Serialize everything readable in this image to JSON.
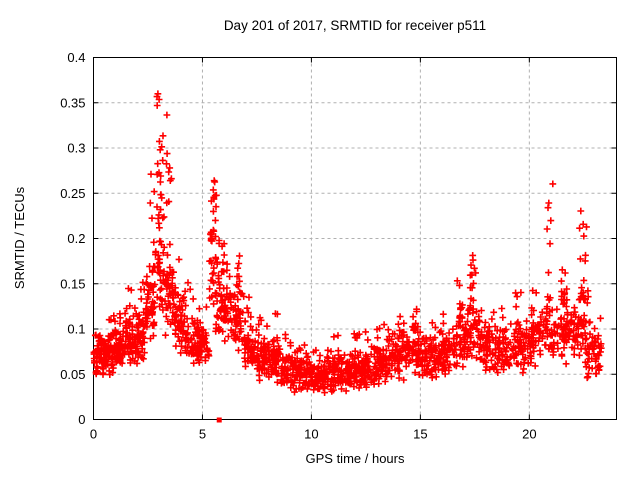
{
  "chart_data": {
    "type": "scatter",
    "title": "Day 201 of 2017, SRMTID for receiver p511",
    "xlabel": "GPS time / hours",
    "ylabel": "SRMTID / TECUs",
    "xlim": [
      0,
      24
    ],
    "ylim": [
      0,
      0.4
    ],
    "xticks": [
      {
        "v": 0,
        "label": "0"
      },
      {
        "v": 5,
        "label": "5"
      },
      {
        "v": 10,
        "label": "10"
      },
      {
        "v": 15,
        "label": "15"
      },
      {
        "v": 20,
        "label": "20"
      }
    ],
    "yticks": [
      {
        "v": 0.0,
        "label": "0"
      },
      {
        "v": 0.05,
        "label": "0.05"
      },
      {
        "v": 0.1,
        "label": "0.1"
      },
      {
        "v": 0.15,
        "label": "0.15"
      },
      {
        "v": 0.2,
        "label": "0.2"
      },
      {
        "v": 0.25,
        "label": "0.25"
      },
      {
        "v": 0.3,
        "label": "0.3"
      },
      {
        "v": 0.35,
        "label": "0.35"
      },
      {
        "v": 0.4,
        "label": "0.4"
      }
    ],
    "grid": true,
    "legend": "none",
    "marker": "plus-cross",
    "marker_color": "#ff0000",
    "grid_color": "#b0b0b0",
    "border_color": "#000000",
    "background_color": "#ffffff",
    "special_points": [
      {
        "x": 5.77,
        "y": 0,
        "marker": "filled-square",
        "color": "#ff0000"
      }
    ],
    "seed": 201,
    "envelope_format": "[hourStart, hourEnd, nPoints, bandLow, bandHigh, tailMax, tailFraction, tailHourCenterOrNull] — dense band of points between bandLow..bandHigh TECUs with sparse high tail up to tailMax",
    "envelope": [
      [
        0.0,
        0.5,
        55,
        0.048,
        0.095,
        0.115,
        0.08,
        null
      ],
      [
        0.5,
        1.0,
        55,
        0.045,
        0.1,
        0.125,
        0.1,
        null
      ],
      [
        1.0,
        1.5,
        55,
        0.052,
        0.105,
        0.135,
        0.1,
        null
      ],
      [
        1.5,
        2.0,
        55,
        0.055,
        0.115,
        0.155,
        0.12,
        null
      ],
      [
        2.0,
        2.4,
        45,
        0.06,
        0.13,
        0.23,
        0.18,
        2.25
      ],
      [
        2.4,
        2.8,
        50,
        0.08,
        0.17,
        0.3,
        0.25,
        2.65
      ],
      [
        2.8,
        3.3,
        60,
        0.1,
        0.23,
        0.37,
        0.3,
        3.05
      ],
      [
        3.3,
        3.7,
        50,
        0.09,
        0.19,
        0.365,
        0.22,
        3.45
      ],
      [
        3.7,
        4.2,
        50,
        0.07,
        0.145,
        0.2,
        0.12,
        3.8
      ],
      [
        4.2,
        4.8,
        55,
        0.058,
        0.115,
        0.16,
        0.08,
        null
      ],
      [
        4.8,
        5.3,
        50,
        0.058,
        0.11,
        0.14,
        0.08,
        null
      ],
      [
        5.3,
        5.8,
        58,
        0.09,
        0.205,
        0.28,
        0.3,
        5.5
      ],
      [
        5.8,
        6.3,
        55,
        0.08,
        0.165,
        0.21,
        0.15,
        6.0
      ],
      [
        6.3,
        6.9,
        55,
        0.068,
        0.145,
        0.19,
        0.12,
        6.7
      ],
      [
        6.9,
        7.5,
        55,
        0.055,
        0.115,
        0.145,
        0.08,
        null
      ],
      [
        7.5,
        8.1,
        60,
        0.042,
        0.098,
        0.125,
        0.08,
        null
      ],
      [
        8.1,
        8.6,
        50,
        0.038,
        0.092,
        0.135,
        0.1,
        8.3
      ],
      [
        8.6,
        9.3,
        65,
        0.03,
        0.082,
        0.105,
        0.06,
        null
      ],
      [
        9.3,
        10.0,
        65,
        0.026,
        0.072,
        0.092,
        0.05,
        null
      ],
      [
        10.0,
        10.7,
        65,
        0.024,
        0.066,
        0.088,
        0.05,
        null
      ],
      [
        10.7,
        11.5,
        75,
        0.026,
        0.072,
        0.105,
        0.07,
        null
      ],
      [
        11.5,
        12.3,
        75,
        0.028,
        0.076,
        0.11,
        0.08,
        12.1
      ],
      [
        12.3,
        13.0,
        65,
        0.032,
        0.082,
        0.105,
        0.06,
        null
      ],
      [
        13.0,
        13.7,
        65,
        0.036,
        0.092,
        0.12,
        0.08,
        null
      ],
      [
        13.7,
        14.4,
        65,
        0.04,
        0.1,
        0.125,
        0.1,
        14.1
      ],
      [
        14.4,
        15.0,
        55,
        0.044,
        0.104,
        0.136,
        0.18,
        14.75
      ],
      [
        15.0,
        15.7,
        60,
        0.04,
        0.096,
        0.118,
        0.08,
        null
      ],
      [
        15.7,
        16.4,
        60,
        0.044,
        0.1,
        0.125,
        0.1,
        16.0
      ],
      [
        16.4,
        17.1,
        60,
        0.05,
        0.12,
        0.165,
        0.15,
        16.8
      ],
      [
        17.1,
        17.7,
        55,
        0.055,
        0.13,
        0.192,
        0.25,
        17.4
      ],
      [
        17.7,
        18.4,
        55,
        0.048,
        0.11,
        0.14,
        0.1,
        null
      ],
      [
        18.4,
        19.1,
        55,
        0.046,
        0.105,
        0.132,
        0.08,
        null
      ],
      [
        19.1,
        19.8,
        55,
        0.05,
        0.112,
        0.15,
        0.12,
        19.5
      ],
      [
        19.8,
        20.5,
        55,
        0.055,
        0.122,
        0.158,
        0.12,
        20.2
      ],
      [
        20.5,
        21.2,
        55,
        0.06,
        0.138,
        0.278,
        0.2,
        20.95
      ],
      [
        21.2,
        22.0,
        60,
        0.058,
        0.135,
        0.185,
        0.15,
        21.6
      ],
      [
        22.0,
        22.6,
        55,
        0.06,
        0.14,
        0.24,
        0.22,
        22.4
      ],
      [
        22.6,
        23.3,
        60,
        0.04,
        0.115,
        0.23,
        0.1,
        22.7
      ]
    ]
  }
}
